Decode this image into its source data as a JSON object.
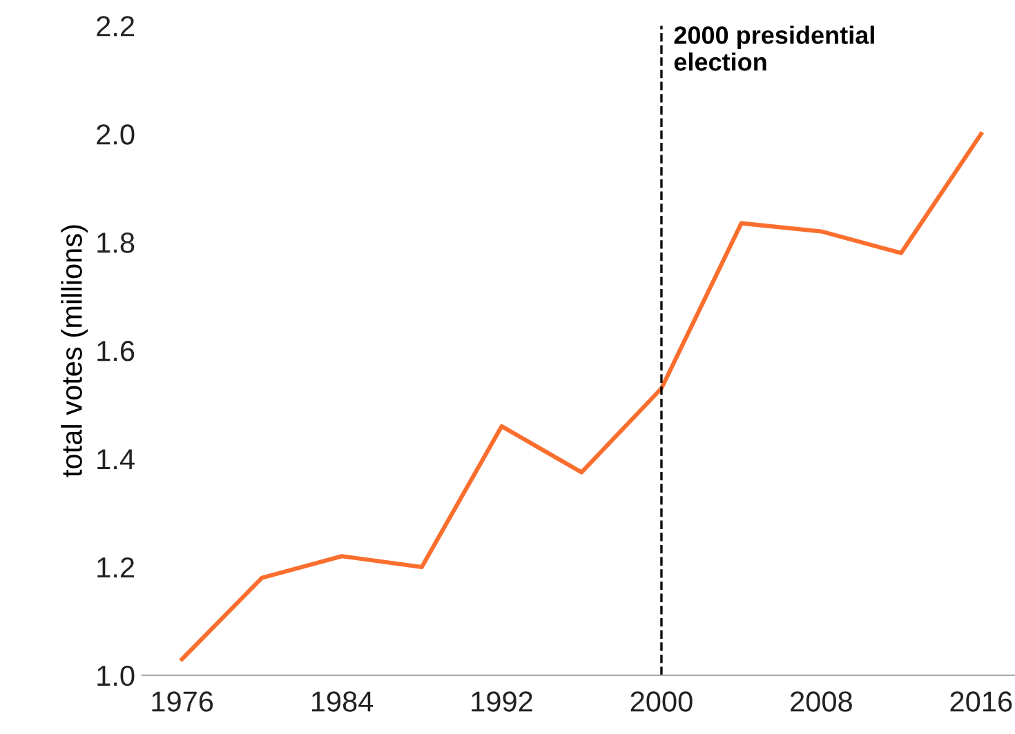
{
  "chart_data": {
    "type": "line",
    "ylabel": "total votes (millions)",
    "x": [
      1976,
      1980,
      1984,
      1988,
      1992,
      1996,
      2000,
      2004,
      2008,
      2012,
      2016
    ],
    "series": [
      {
        "color": "#fa6e2e",
        "values": [
          1.03,
          1.18,
          1.22,
          1.2,
          1.46,
          1.375,
          1.53,
          1.835,
          1.82,
          1.78,
          2.0
        ]
      }
    ],
    "xlim": [
      1974,
      2017.7
    ],
    "xticks": [
      1976,
      1984,
      1992,
      2000,
      2008,
      2016
    ],
    "ylim": [
      1.0,
      2.2
    ],
    "yticks": [
      {
        "value": 1.0,
        "label": "1.0"
      },
      {
        "value": 1.2,
        "label": "1.2"
      },
      {
        "value": 1.4,
        "label": "1.4"
      },
      {
        "value": 1.6,
        "label": "1.6"
      },
      {
        "value": 1.8,
        "label": "1.8"
      },
      {
        "value": 2.0,
        "label": "2.0"
      },
      {
        "value": 2.2,
        "label": "2.2"
      }
    ],
    "grid": false,
    "legend": false,
    "marker": "none",
    "line_style": "solid",
    "ref_lines": [
      {
        "axis": "x",
        "value": 2000,
        "label": "2000 presidential\nelection",
        "color": "#000000",
        "line_style": "dashed"
      }
    ]
  }
}
